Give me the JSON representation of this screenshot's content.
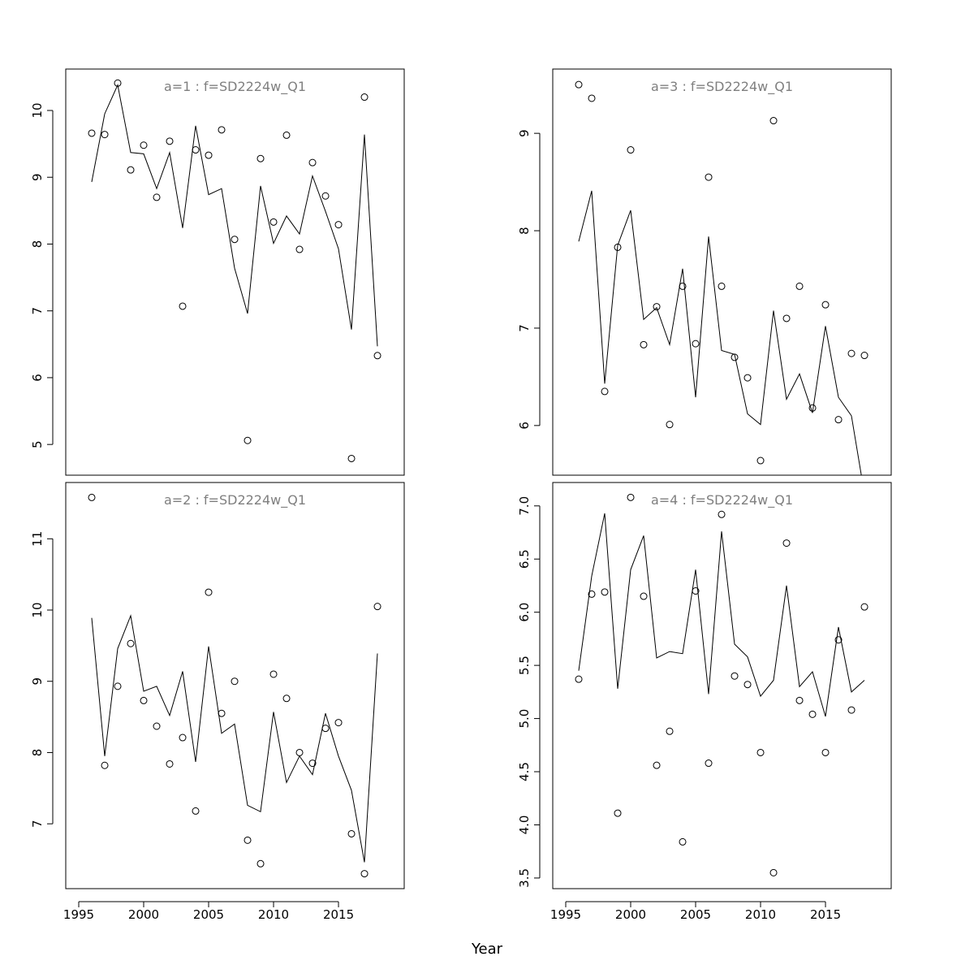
{
  "chart_data": {
    "type": "scatter",
    "xlabel": "Year",
    "x": [
      1996,
      1997,
      1998,
      1999,
      2000,
      2001,
      2002,
      2003,
      2004,
      2005,
      2006,
      2007,
      2008,
      2009,
      2010,
      2011,
      2012,
      2013,
      2014,
      2015,
      2016,
      2017,
      2018
    ],
    "xlim": [
      1994,
      2020.06
    ],
    "xticks": [
      1995,
      2000,
      2005,
      2010,
      2015
    ],
    "xtick_labels": [
      "1995",
      "2000",
      "2005",
      "2010",
      "2015"
    ],
    "panels": [
      {
        "title": "a=1  :  f=SD2224w_Q1",
        "position": "top-left",
        "ylim": [
          4.54,
          10.62
        ],
        "yticks": [
          5,
          6,
          7,
          8,
          9,
          10
        ],
        "ytick_labels": [
          "5",
          "6",
          "7",
          "8",
          "9",
          "10"
        ],
        "observed": [
          9.66,
          9.64,
          10.41,
          9.11,
          9.48,
          8.7,
          9.54,
          7.07,
          9.41,
          9.33,
          9.71,
          8.07,
          5.06,
          9.28,
          8.33,
          9.63,
          7.92,
          9.22,
          8.72,
          8.29,
          4.79,
          10.2,
          6.33
        ],
        "fitted": [
          8.93,
          9.95,
          10.38,
          9.37,
          9.35,
          8.83,
          9.37,
          8.24,
          9.77,
          8.74,
          8.83,
          7.64,
          6.96,
          8.87,
          8.01,
          8.42,
          8.15,
          9.02,
          8.49,
          7.93,
          6.72,
          9.64,
          6.47
        ]
      },
      {
        "title": "a=3  :  f=SD2224w_Q1",
        "position": "top-right",
        "ylim": [
          5.49,
          9.66
        ],
        "yticks": [
          6,
          7,
          8,
          9
        ],
        "ytick_labels": [
          "6",
          "7",
          "8",
          "9"
        ],
        "observed": [
          9.5,
          9.36,
          6.35,
          7.83,
          8.83,
          6.83,
          7.22,
          6.01,
          7.43,
          6.84,
          8.55,
          7.43,
          6.7,
          6.49,
          5.64,
          9.13,
          7.1,
          7.43,
          6.18,
          7.24,
          6.06,
          6.74,
          6.72
        ],
        "fitted": [
          7.89,
          8.41,
          6.43,
          7.85,
          8.21,
          7.09,
          7.21,
          6.83,
          7.61,
          6.29,
          7.94,
          6.77,
          6.73,
          6.12,
          6.01,
          7.18,
          6.27,
          6.53,
          6.13,
          7.02,
          6.29,
          6.1,
          5.3
        ]
      },
      {
        "title": "a=2  :  f=SD2224w_Q1",
        "position": "bottom-left",
        "ylim": [
          6.09,
          11.79
        ],
        "yticks": [
          7,
          8,
          9,
          10,
          11
        ],
        "ytick_labels": [
          "7",
          "8",
          "9",
          "10",
          "11"
        ],
        "observed": [
          11.58,
          7.82,
          8.93,
          9.53,
          8.73,
          8.37,
          7.84,
          8.21,
          7.18,
          10.25,
          8.55,
          9.0,
          6.77,
          6.44,
          9.1,
          8.76,
          8.0,
          7.85,
          8.34,
          8.42,
          6.86,
          6.3,
          10.05
        ],
        "fitted": [
          9.89,
          7.95,
          9.46,
          9.92,
          8.86,
          8.93,
          8.52,
          9.14,
          7.87,
          9.49,
          8.27,
          8.4,
          7.26,
          7.17,
          8.57,
          7.58,
          7.95,
          7.69,
          8.55,
          7.95,
          7.47,
          6.46,
          9.39
        ]
      },
      {
        "title": "a=4  :  f=SD2224w_Q1",
        "position": "bottom-right",
        "ylim": [
          3.4,
          7.22
        ],
        "yticks": [
          3.5,
          4.0,
          4.5,
          5.0,
          5.5,
          6.0,
          6.5,
          7.0
        ],
        "ytick_labels": [
          "3.5",
          "4.0",
          "4.5",
          "5.0",
          "5.5",
          "6.0",
          "6.5",
          "7.0"
        ],
        "observed": [
          5.37,
          6.17,
          6.19,
          4.11,
          7.08,
          6.15,
          4.56,
          4.88,
          3.84,
          6.2,
          4.58,
          6.92,
          5.4,
          5.32,
          4.68,
          3.55,
          6.65,
          5.17,
          5.04,
          4.68,
          5.74,
          5.08,
          6.05
        ],
        "fitted": [
          5.45,
          6.34,
          6.93,
          5.28,
          6.4,
          6.72,
          5.57,
          5.63,
          5.61,
          6.4,
          5.23,
          6.76,
          5.7,
          5.58,
          5.21,
          5.36,
          6.25,
          5.3,
          5.44,
          5.02,
          5.86,
          5.25,
          5.36
        ]
      }
    ]
  }
}
